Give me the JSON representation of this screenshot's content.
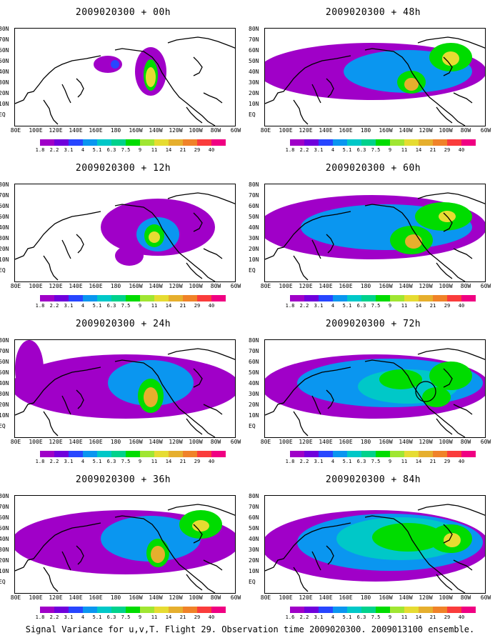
{
  "panels": [
    {
      "title": "2009020300 + 00h"
    },
    {
      "title": "2009020300 + 48h"
    },
    {
      "title": "2009020300 + 12h"
    },
    {
      "title": "2009020300 + 60h"
    },
    {
      "title": "2009020300 + 24h"
    },
    {
      "title": "2009020300 + 72h"
    },
    {
      "title": "2009020300 + 36h"
    },
    {
      "title": "2009020300 + 84h"
    }
  ],
  "lat_labels": [
    "80N",
    "70N",
    "60N",
    "50N",
    "40N",
    "30N",
    "20N",
    "10N",
    "EQ"
  ],
  "lon_labels": [
    "80E",
    "100E",
    "120E",
    "140E",
    "160E",
    "180",
    "160W",
    "140W",
    "120W",
    "100W",
    "80W",
    "60W"
  ],
  "colorbar_labels": [
    "1.8",
    "2.2",
    "3.1",
    "4",
    "5.1",
    "6.3",
    "7.5",
    "9",
    "11",
    "14",
    "21",
    "29",
    "40"
  ],
  "colorbar_labels_last": [
    "1.6",
    "2.2",
    "3.1",
    "4",
    "5.1",
    "6.3",
    "7.5",
    "9",
    "11",
    "14",
    "21",
    "29",
    "40"
  ],
  "colorbar_colors": [
    "#a000c8",
    "#7000dc",
    "#2846ff",
    "#0a96f0",
    "#00c8c8",
    "#00d28c",
    "#00dc00",
    "#a0e632",
    "#e6dc32",
    "#e6af2d",
    "#f08228",
    "#fa3c3c",
    "#f00082"
  ],
  "caption": "Signal Variance for u,v,T. Flight 29. Observation time 2009020300. 2009013100 ensemble."
}
